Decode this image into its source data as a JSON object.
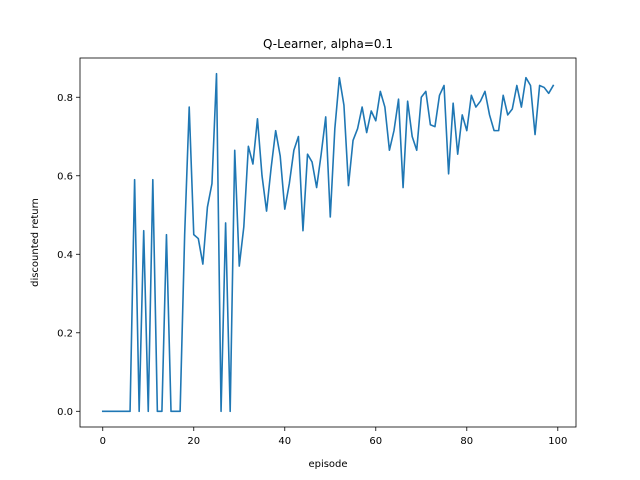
{
  "chart_data": {
    "type": "line",
    "title": "Q-Learner, alpha=0.1",
    "xlabel": "episode",
    "ylabel": "discounted return",
    "xlim": [
      -5,
      104
    ],
    "ylim": [
      -0.04,
      0.9
    ],
    "xticks": [
      0,
      20,
      40,
      60,
      80,
      100
    ],
    "yticks": [
      0.0,
      0.2,
      0.4,
      0.6,
      0.8
    ],
    "ytick_labels": [
      "0.0",
      "0.2",
      "0.4",
      "0.6",
      "0.8"
    ],
    "grid": false,
    "series": [
      {
        "color": "#1f77b4",
        "x": [
          0,
          1,
          2,
          3,
          4,
          5,
          6,
          7,
          8,
          9,
          10,
          11,
          12,
          13,
          14,
          15,
          16,
          17,
          18,
          19,
          20,
          21,
          22,
          23,
          24,
          25,
          26,
          27,
          28,
          29,
          30,
          31,
          32,
          33,
          34,
          35,
          36,
          37,
          38,
          39,
          40,
          41,
          42,
          43,
          44,
          45,
          46,
          47,
          48,
          49,
          50,
          51,
          52,
          53,
          54,
          55,
          56,
          57,
          58,
          59,
          60,
          61,
          62,
          63,
          64,
          65,
          66,
          67,
          68,
          69,
          70,
          71,
          72,
          73,
          74,
          75,
          76,
          77,
          78,
          79,
          80,
          81,
          82,
          83,
          84,
          85,
          86,
          87,
          88,
          89,
          90,
          91,
          92,
          93,
          94,
          95,
          96,
          97,
          98,
          99
        ],
        "y": [
          0,
          0,
          0,
          0,
          0,
          0,
          0,
          0.59,
          0,
          0.46,
          0,
          0.59,
          0,
          0,
          0.45,
          0,
          0,
          0,
          0.45,
          0.775,
          0.45,
          0.44,
          0.375,
          0.52,
          0.58,
          0.86,
          0,
          0.48,
          0,
          0.665,
          0.37,
          0.47,
          0.675,
          0.63,
          0.745,
          0.6,
          0.51,
          0.62,
          0.715,
          0.65,
          0.515,
          0.58,
          0.665,
          0.7,
          0.46,
          0.655,
          0.635,
          0.57,
          0.655,
          0.75,
          0.495,
          0.72,
          0.85,
          0.78,
          0.575,
          0.69,
          0.72,
          0.775,
          0.71,
          0.765,
          0.74,
          0.815,
          0.775,
          0.665,
          0.715,
          0.795,
          0.57,
          0.79,
          0.7,
          0.665,
          0.8,
          0.815,
          0.73,
          0.725,
          0.805,
          0.83,
          0.605,
          0.785,
          0.655,
          0.755,
          0.715,
          0.805,
          0.775,
          0.79,
          0.815,
          0.755,
          0.715,
          0.715,
          0.805,
          0.755,
          0.77,
          0.83,
          0.775,
          0.85,
          0.83,
          0.705,
          0.83,
          0.825,
          0.81,
          0.83
        ]
      }
    ]
  }
}
